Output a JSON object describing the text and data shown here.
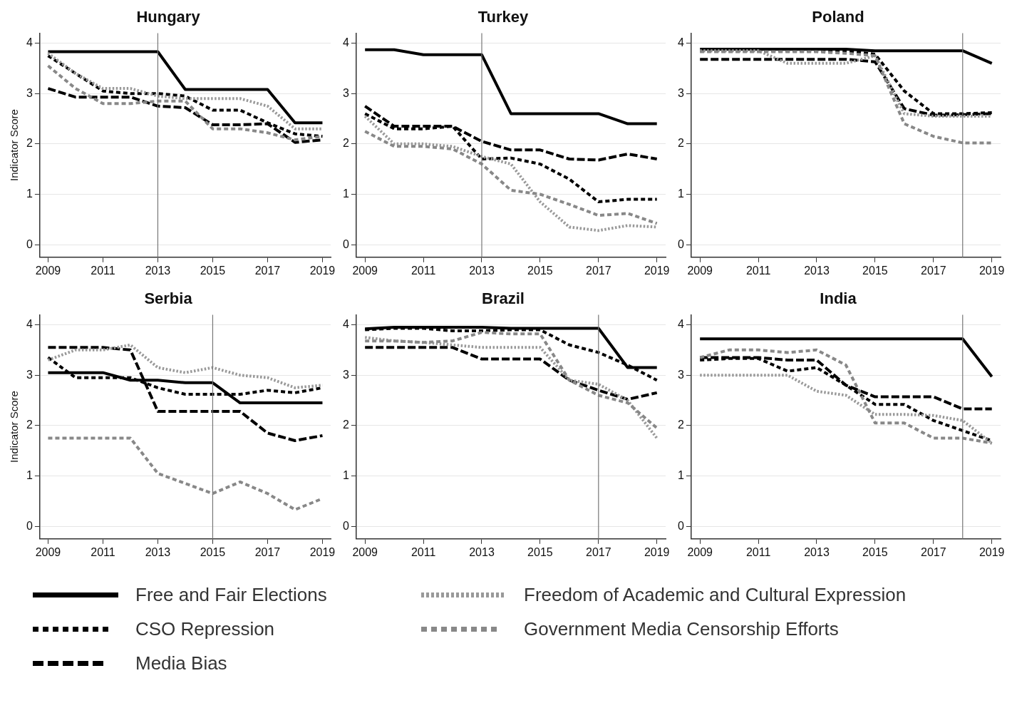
{
  "chart_data": [
    {
      "type": "line",
      "title": "Hungary",
      "ylabel": "Indicator Score",
      "x": [
        2009,
        2010,
        2011,
        2012,
        2013,
        2014,
        2015,
        2016,
        2017,
        2018,
        2019
      ],
      "xlim": [
        2008.7,
        2019.3
      ],
      "ylim": [
        -0.25,
        4.2
      ],
      "xticks": [
        2009,
        2011,
        2013,
        2015,
        2017,
        2019
      ],
      "yticks": [
        0,
        1,
        2,
        3,
        4
      ],
      "grid": "y",
      "ref_lines": [
        {
          "axis": "x",
          "value": 2013,
          "color": "#777777"
        }
      ],
      "series": [
        {
          "color": "#000000",
          "line_style": "solid",
          "values": [
            3.83,
            3.83,
            3.83,
            3.83,
            3.83,
            3.08,
            3.08,
            3.08,
            3.08,
            2.42,
            2.42
          ]
        },
        {
          "color": "#000000",
          "line_style": "dashed",
          "values": [
            3.75,
            3.4,
            3.05,
            3.0,
            3.0,
            2.95,
            2.67,
            2.67,
            2.42,
            2.2,
            2.15
          ]
        },
        {
          "color": "#000000",
          "line_style": "dashed",
          "values": [
            3.1,
            2.93,
            2.93,
            2.93,
            2.75,
            2.72,
            2.38,
            2.38,
            2.4,
            2.03,
            2.08
          ]
        },
        {
          "color": "#999999",
          "line_style": "dotted",
          "values": [
            3.8,
            3.4,
            3.1,
            3.1,
            2.95,
            2.9,
            2.9,
            2.9,
            2.75,
            2.3,
            2.3
          ]
        },
        {
          "color": "#888888",
          "line_style": "dashed",
          "values": [
            3.55,
            3.1,
            2.8,
            2.8,
            2.85,
            2.85,
            2.3,
            2.3,
            2.22,
            2.08,
            2.15
          ]
        }
      ]
    },
    {
      "type": "line",
      "title": "Turkey",
      "x": [
        2009,
        2010,
        2011,
        2012,
        2013,
        2014,
        2015,
        2016,
        2017,
        2018,
        2019
      ],
      "xlim": [
        2008.7,
        2019.3
      ],
      "ylim": [
        -0.25,
        4.2
      ],
      "xticks": [
        2009,
        2011,
        2013,
        2015,
        2017,
        2019
      ],
      "yticks": [
        0,
        1,
        2,
        3,
        4
      ],
      "grid": "y",
      "ref_lines": [
        {
          "axis": "x",
          "value": 2013,
          "color": "#777777"
        }
      ],
      "series": [
        {
          "color": "#000000",
          "line_style": "solid",
          "values": [
            3.87,
            3.87,
            3.77,
            3.77,
            3.77,
            2.6,
            2.6,
            2.6,
            2.6,
            2.4,
            2.4
          ]
        },
        {
          "color": "#000000",
          "line_style": "dashed",
          "values": [
            2.6,
            2.3,
            2.3,
            2.35,
            1.7,
            1.72,
            1.6,
            1.3,
            0.85,
            0.9,
            0.9
          ]
        },
        {
          "color": "#000000",
          "line_style": "dashed",
          "values": [
            2.75,
            2.35,
            2.35,
            2.35,
            2.05,
            1.88,
            1.88,
            1.7,
            1.68,
            1.8,
            1.7
          ]
        },
        {
          "color": "#999999",
          "line_style": "dotted",
          "values": [
            2.55,
            2.0,
            2.0,
            1.95,
            1.75,
            1.6,
            0.85,
            0.35,
            0.28,
            0.38,
            0.35
          ]
        },
        {
          "color": "#888888",
          "line_style": "dashed",
          "values": [
            2.25,
            1.95,
            1.95,
            1.9,
            1.6,
            1.08,
            1.0,
            0.8,
            0.58,
            0.62,
            0.42
          ]
        }
      ]
    },
    {
      "type": "line",
      "title": "Poland",
      "x": [
        2009,
        2010,
        2011,
        2012,
        2013,
        2014,
        2015,
        2016,
        2017,
        2018,
        2019
      ],
      "xlim": [
        2008.7,
        2019.3
      ],
      "ylim": [
        -0.25,
        4.2
      ],
      "xticks": [
        2009,
        2011,
        2013,
        2015,
        2017,
        2019
      ],
      "yticks": [
        0,
        1,
        2,
        3,
        4
      ],
      "grid": "y",
      "ref_lines": [
        {
          "axis": "x",
          "value": 2018,
          "color": "#777777"
        }
      ],
      "series": [
        {
          "color": "#000000",
          "line_style": "solid",
          "values": [
            3.88,
            3.88,
            3.88,
            3.88,
            3.88,
            3.88,
            3.85,
            3.85,
            3.85,
            3.85,
            3.6
          ]
        },
        {
          "color": "#000000",
          "line_style": "dashed",
          "values": [
            3.85,
            3.85,
            3.85,
            3.85,
            3.85,
            3.85,
            3.78,
            3.05,
            2.6,
            2.6,
            2.62
          ]
        },
        {
          "color": "#000000",
          "line_style": "dashed",
          "values": [
            3.68,
            3.68,
            3.68,
            3.68,
            3.68,
            3.68,
            3.63,
            2.7,
            2.57,
            2.58,
            2.6
          ]
        },
        {
          "color": "#999999",
          "line_style": "dotted",
          "values": [
            3.85,
            3.85,
            3.85,
            3.6,
            3.6,
            3.6,
            3.75,
            2.6,
            2.55,
            2.55,
            2.55
          ]
        },
        {
          "color": "#888888",
          "line_style": "dashed",
          "values": [
            3.83,
            3.83,
            3.83,
            3.83,
            3.83,
            3.8,
            3.75,
            2.4,
            2.15,
            2.02,
            2.02
          ]
        }
      ]
    },
    {
      "type": "line",
      "title": "Serbia",
      "ylabel": "Indicator Score",
      "x": [
        2009,
        2010,
        2011,
        2012,
        2013,
        2014,
        2015,
        2016,
        2017,
        2018,
        2019
      ],
      "xlim": [
        2008.7,
        2019.3
      ],
      "ylim": [
        -0.25,
        4.2
      ],
      "xticks": [
        2009,
        2011,
        2013,
        2015,
        2017,
        2019
      ],
      "yticks": [
        0,
        1,
        2,
        3,
        4
      ],
      "grid": "y",
      "ref_lines": [
        {
          "axis": "x",
          "value": 2015,
          "color": "#777777"
        }
      ],
      "series": [
        {
          "color": "#000000",
          "line_style": "solid",
          "values": [
            3.05,
            3.05,
            3.05,
            2.9,
            2.9,
            2.85,
            2.85,
            2.45,
            2.45,
            2.45,
            2.45
          ]
        },
        {
          "color": "#000000",
          "line_style": "dashed",
          "values": [
            3.35,
            2.95,
            2.95,
            2.95,
            2.75,
            2.62,
            2.62,
            2.62,
            2.7,
            2.65,
            2.75
          ]
        },
        {
          "color": "#000000",
          "line_style": "dashed",
          "values": [
            3.55,
            3.55,
            3.55,
            3.5,
            2.28,
            2.28,
            2.28,
            2.28,
            1.85,
            1.7,
            1.8
          ]
        },
        {
          "color": "#999999",
          "line_style": "dotted",
          "values": [
            3.3,
            3.5,
            3.5,
            3.6,
            3.15,
            3.05,
            3.15,
            3.0,
            2.95,
            2.75,
            2.8
          ]
        },
        {
          "color": "#888888",
          "line_style": "dashed",
          "values": [
            1.75,
            1.75,
            1.75,
            1.75,
            1.05,
            0.85,
            0.65,
            0.88,
            0.65,
            0.33,
            0.55
          ]
        }
      ]
    },
    {
      "type": "line",
      "title": "Brazil",
      "x": [
        2009,
        2010,
        2011,
        2012,
        2013,
        2014,
        2015,
        2016,
        2017,
        2018,
        2019
      ],
      "xlim": [
        2008.7,
        2019.3
      ],
      "ylim": [
        -0.25,
        4.2
      ],
      "xticks": [
        2009,
        2011,
        2013,
        2015,
        2017,
        2019
      ],
      "yticks": [
        0,
        1,
        2,
        3,
        4
      ],
      "grid": "y",
      "ref_lines": [
        {
          "axis": "x",
          "value": 2017,
          "color": "#777777"
        }
      ],
      "series": [
        {
          "color": "#000000",
          "line_style": "solid",
          "values": [
            3.92,
            3.95,
            3.95,
            3.95,
            3.95,
            3.93,
            3.93,
            3.93,
            3.93,
            3.15,
            3.15
          ]
        },
        {
          "color": "#000000",
          "line_style": "dashed",
          "values": [
            3.9,
            3.93,
            3.93,
            3.88,
            3.88,
            3.9,
            3.9,
            3.6,
            3.45,
            3.2,
            2.9
          ]
        },
        {
          "color": "#000000",
          "line_style": "dashed",
          "values": [
            3.55,
            3.55,
            3.55,
            3.55,
            3.32,
            3.32,
            3.32,
            2.9,
            2.7,
            2.52,
            2.65
          ]
        },
        {
          "color": "#999999",
          "line_style": "dotted",
          "values": [
            3.75,
            3.68,
            3.65,
            3.6,
            3.55,
            3.55,
            3.55,
            2.9,
            2.82,
            2.5,
            1.75
          ]
        },
        {
          "color": "#888888",
          "line_style": "dashed",
          "values": [
            3.68,
            3.68,
            3.65,
            3.68,
            3.85,
            3.82,
            3.82,
            2.9,
            2.6,
            2.45,
            1.95
          ]
        }
      ]
    },
    {
      "type": "line",
      "title": "India",
      "x": [
        2009,
        2010,
        2011,
        2012,
        2013,
        2014,
        2015,
        2016,
        2017,
        2018,
        2019
      ],
      "xlim": [
        2008.7,
        2019.3
      ],
      "ylim": [
        -0.25,
        4.2
      ],
      "xticks": [
        2009,
        2011,
        2013,
        2015,
        2017,
        2019
      ],
      "yticks": [
        0,
        1,
        2,
        3,
        4
      ],
      "grid": "y",
      "legend": "bottom",
      "ref_lines": [
        {
          "axis": "x",
          "value": 2018,
          "color": "#777777"
        }
      ],
      "series": [
        {
          "name": "Free and Fair Elections",
          "color": "#000000",
          "line_style": "solid",
          "values": [
            3.72,
            3.72,
            3.72,
            3.72,
            3.72,
            3.72,
            3.72,
            3.72,
            3.72,
            3.72,
            2.97
          ]
        },
        {
          "name": "CSO Repression",
          "color": "#000000",
          "line_style": "dashed",
          "values": [
            3.3,
            3.33,
            3.33,
            3.08,
            3.15,
            2.8,
            2.42,
            2.42,
            2.1,
            1.9,
            1.7
          ]
        },
        {
          "name": "Media Bias",
          "color": "#000000",
          "line_style": "dashed",
          "values": [
            3.35,
            3.35,
            3.35,
            3.3,
            3.3,
            2.8,
            2.57,
            2.57,
            2.57,
            2.33,
            2.33
          ]
        },
        {
          "name": "Freedom of Academic and Cultural Expression",
          "color": "#999999",
          "line_style": "dotted",
          "values": [
            3.0,
            3.0,
            3.0,
            3.0,
            2.68,
            2.6,
            2.22,
            2.22,
            2.2,
            2.1,
            1.65
          ]
        },
        {
          "name": "Government Media Censorship Efforts",
          "color": "#888888",
          "line_style": "dashed",
          "values": [
            3.35,
            3.5,
            3.5,
            3.45,
            3.5,
            3.2,
            2.05,
            2.05,
            1.75,
            1.75,
            1.65
          ]
        }
      ]
    }
  ]
}
